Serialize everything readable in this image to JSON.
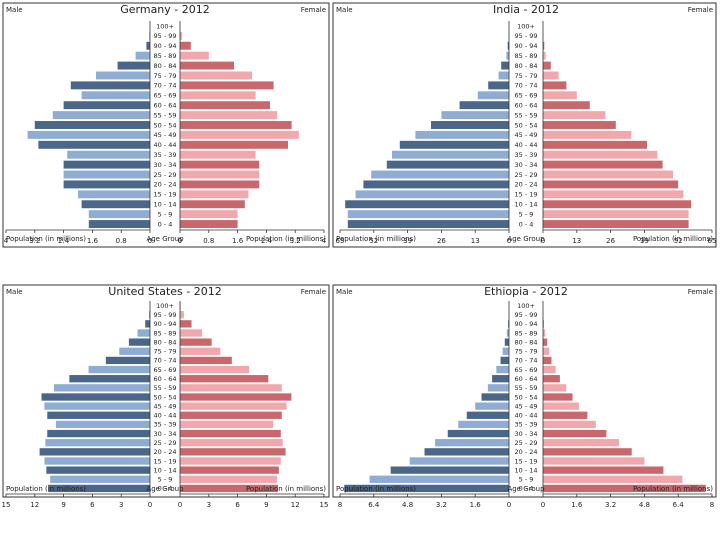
{
  "palette": {
    "male_dark": "#4a6688",
    "male_light": "#8fadd2",
    "female_dark": "#c8686d",
    "female_light": "#f0a8ad",
    "frame": "#333333"
  },
  "age_groups": [
    "0 - 4",
    "5 - 9",
    "10 - 14",
    "15 - 19",
    "20 - 24",
    "25 - 29",
    "30 - 34",
    "35 - 39",
    "40 - 44",
    "45 - 49",
    "50 - 54",
    "55 - 59",
    "60 - 64",
    "65 - 69",
    "70 - 74",
    "75 - 79",
    "80 - 84",
    "85 - 89",
    "90 - 94",
    "95 - 99",
    "100+"
  ],
  "chart_data": [
    {
      "type": "bar",
      "title": "Germany - 2012",
      "male_label": "Male",
      "female_label": "Female",
      "xlabel_left": "Population (in millions)",
      "xlabel_center": "Age Group",
      "xlabel_right": "Population (in millions)",
      "max": 4,
      "left_ticks": [
        "4",
        "3.2",
        "2.4",
        "1.6",
        "0.8",
        "0"
      ],
      "right_ticks": [
        "0",
        "0.8",
        "1.6",
        "2.4",
        "3.2",
        "4"
      ],
      "series": [
        {
          "name": "Male",
          "values": [
            1.7,
            1.7,
            1.9,
            2.0,
            2.4,
            2.4,
            2.4,
            2.3,
            3.1,
            3.4,
            3.2,
            2.7,
            2.4,
            1.9,
            2.2,
            1.5,
            0.9,
            0.4,
            0.1,
            0.02,
            0.0
          ]
        },
        {
          "name": "Female",
          "values": [
            1.6,
            1.6,
            1.8,
            1.9,
            2.2,
            2.2,
            2.2,
            2.1,
            3.0,
            3.3,
            3.1,
            2.7,
            2.5,
            2.1,
            2.6,
            2.0,
            1.5,
            0.8,
            0.3,
            0.06,
            0.01
          ]
        }
      ]
    },
    {
      "type": "bar",
      "title": "India - 2012",
      "male_label": "Male",
      "female_label": "Female",
      "xlabel_left": "Population (in millions)",
      "xlabel_center": "Age Group",
      "xlabel_right": "Population (in millions)",
      "max": 65,
      "left_ticks": [
        "65",
        "52",
        "39",
        "26",
        "13",
        "0"
      ],
      "right_ticks": [
        "0",
        "13",
        "26",
        "39",
        "52",
        "65"
      ],
      "series": [
        {
          "name": "Male",
          "values": [
            62,
            62,
            63,
            59,
            56,
            53,
            47,
            45,
            42,
            36,
            30,
            26,
            19,
            12,
            8,
            4,
            3,
            1,
            0.5,
            0.1,
            0.02
          ]
        },
        {
          "name": "Female",
          "values": [
            56,
            56,
            57,
            54,
            52,
            50,
            46,
            44,
            40,
            34,
            28,
            24,
            18,
            13,
            9,
            6,
            3,
            1,
            0.5,
            0.1,
            0.02
          ]
        }
      ]
    },
    {
      "type": "bar",
      "title": "United States - 2012",
      "male_label": "Male",
      "female_label": "Female",
      "xlabel_left": "Population (in millions)",
      "xlabel_center": "Age Group",
      "xlabel_right": "Population (in millions)",
      "max": 15,
      "left_ticks": [
        "15",
        "12",
        "9",
        "6",
        "3",
        "0"
      ],
      "right_ticks": [
        "0",
        "3",
        "6",
        "9",
        "12",
        "15"
      ],
      "series": [
        {
          "name": "Male",
          "values": [
            10.6,
            10.4,
            10.8,
            11.0,
            11.5,
            10.9,
            10.7,
            9.8,
            10.7,
            11.0,
            11.3,
            10.0,
            8.4,
            6.4,
            4.6,
            3.2,
            2.2,
            1.3,
            0.5,
            0.1,
            0.01
          ]
        },
        {
          "name": "Female",
          "values": [
            10.2,
            10.1,
            10.3,
            10.5,
            11.0,
            10.7,
            10.5,
            9.7,
            10.6,
            11.1,
            11.6,
            10.6,
            9.2,
            7.2,
            5.4,
            4.2,
            3.3,
            2.3,
            1.2,
            0.4,
            0.06
          ]
        }
      ]
    },
    {
      "type": "bar",
      "title": "Ethiopia - 2012",
      "male_label": "Male",
      "female_label": "Female",
      "xlabel_left": "Population (in millions)",
      "xlabel_center": "Age Group",
      "xlabel_right": "Population (in millions)",
      "max": 8,
      "left_ticks": [
        "8",
        "6.4",
        "4.8",
        "3.2",
        "1.6",
        "0"
      ],
      "right_ticks": [
        "0",
        "1.6",
        "3.2",
        "4.8",
        "6.4",
        "8"
      ],
      "series": [
        {
          "name": "Male",
          "values": [
            7.8,
            6.6,
            5.6,
            4.7,
            4.0,
            3.5,
            2.9,
            2.4,
            2.0,
            1.6,
            1.3,
            1.0,
            0.8,
            0.6,
            0.4,
            0.3,
            0.2,
            0.1,
            0.04,
            0.01,
            0.0
          ]
        },
        {
          "name": "Female",
          "values": [
            7.7,
            6.6,
            5.7,
            4.8,
            4.2,
            3.6,
            3.0,
            2.5,
            2.1,
            1.7,
            1.4,
            1.1,
            0.8,
            0.6,
            0.4,
            0.3,
            0.2,
            0.1,
            0.04,
            0.01,
            0.0
          ]
        }
      ]
    }
  ]
}
